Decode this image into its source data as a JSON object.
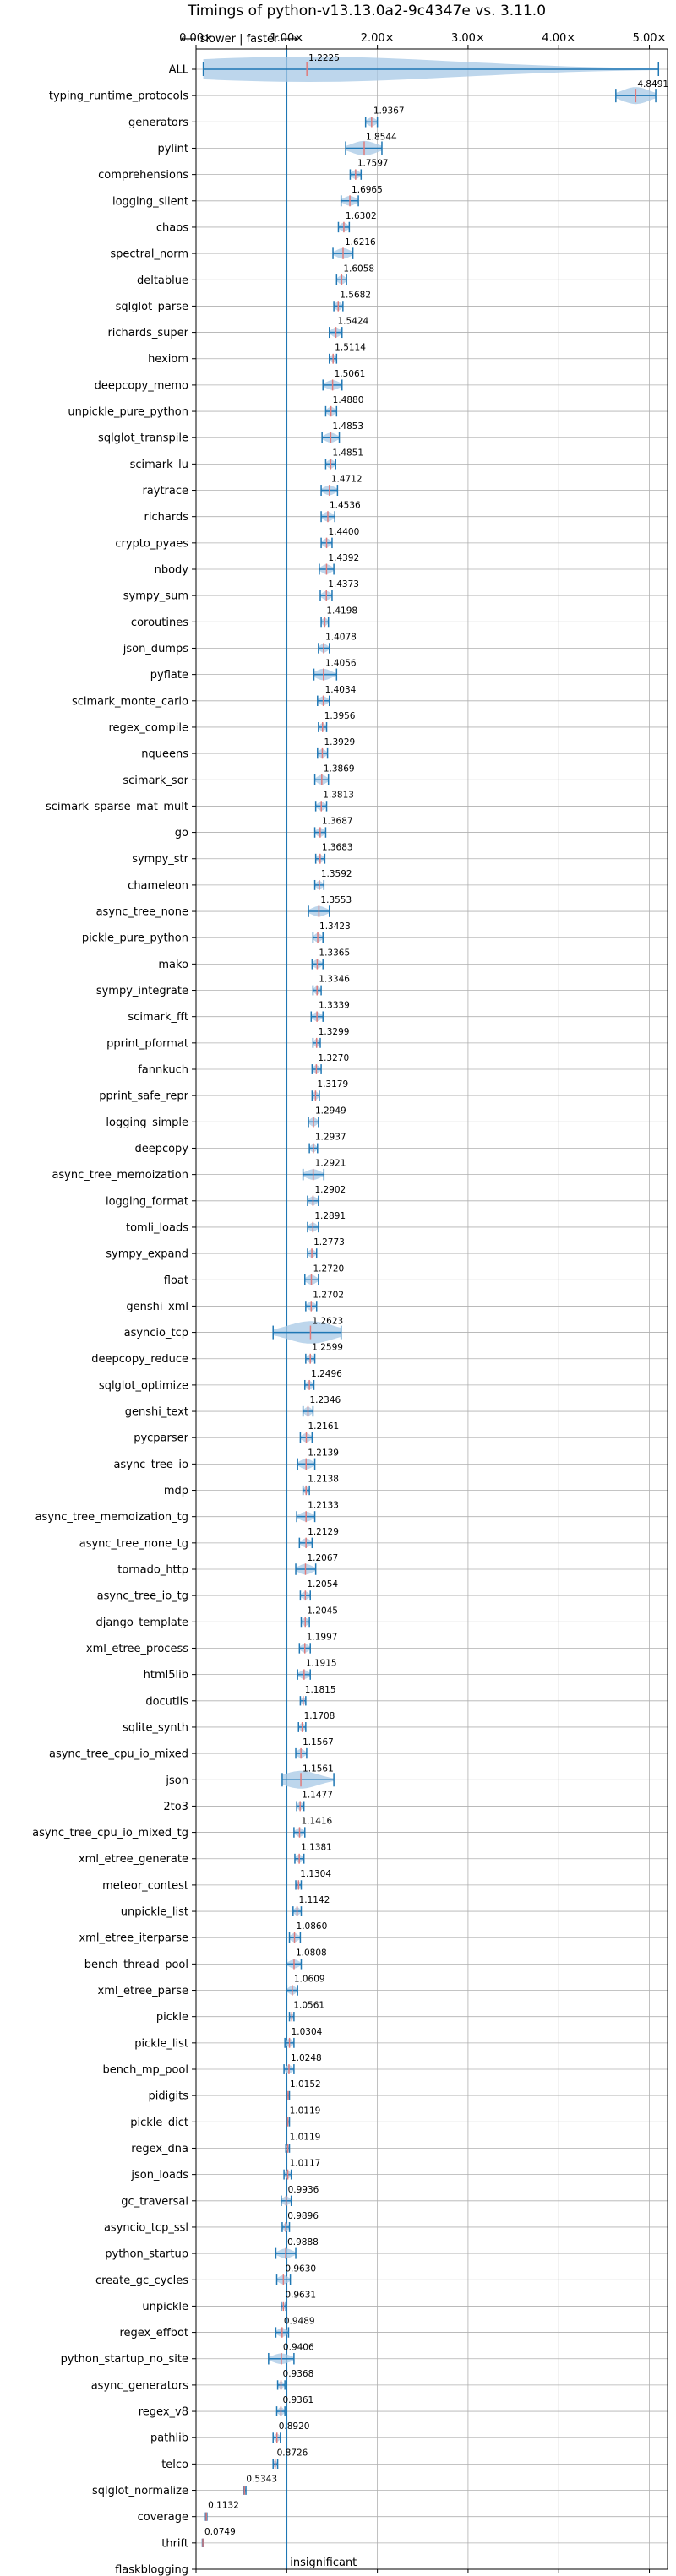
{
  "chart_data": {
    "type": "violin",
    "title": "Timings of python-v13.13.0a2-9c4347e vs. 3.11.0",
    "orientation": "horizontal",
    "xlim": [
      0,
      5.2
    ],
    "xticks": [
      0,
      1,
      2,
      3,
      4,
      5
    ],
    "xtick_labels": [
      "0.00×",
      "1.00×",
      "2.00×",
      "3.00×",
      "4.00×",
      "5.00×"
    ],
    "grid": true,
    "reference_line": 1.0,
    "direction_label": "⟵ slower | faster ⟶",
    "colors": {
      "violin": "#a7c8e6",
      "whisker": "#1f77b4",
      "median": "#e07b7b",
      "grid": "#b0b0b0"
    },
    "benchmarks": [
      {
        "name": "ALL",
        "value": 1.2225,
        "label": "1.2225",
        "lo": 0.08,
        "hi": 5.1,
        "spread": 0.3
      },
      {
        "name": "typing_runtime_protocols",
        "value": 4.8491,
        "label": "4.8491",
        "lo": 4.63,
        "hi": 5.07,
        "spread": 0.15
      },
      {
        "name": "generators",
        "value": 1.9367,
        "label": "1.9367",
        "lo": 1.87,
        "hi": 2.0,
        "spread": 0.05
      },
      {
        "name": "pylint",
        "value": 1.8544,
        "label": "1.8544",
        "lo": 1.65,
        "hi": 2.05,
        "spread": 0.12
      },
      {
        "name": "comprehensions",
        "value": 1.7597,
        "label": "1.7597",
        "lo": 1.7,
        "hi": 1.82,
        "spread": 0.05
      },
      {
        "name": "logging_silent",
        "value": 1.6965,
        "label": "1.6965",
        "lo": 1.6,
        "hi": 1.79,
        "spread": 0.06
      },
      {
        "name": "chaos",
        "value": 1.6302,
        "label": "1.6302",
        "lo": 1.57,
        "hi": 1.69,
        "spread": 0.05
      },
      {
        "name": "spectral_norm",
        "value": 1.6216,
        "label": "1.6216",
        "lo": 1.51,
        "hi": 1.73,
        "spread": 0.07
      },
      {
        "name": "deltablue",
        "value": 1.6058,
        "label": "1.6058",
        "lo": 1.55,
        "hi": 1.66,
        "spread": 0.05
      },
      {
        "name": "sqlglot_parse",
        "value": 1.5682,
        "label": "1.5682",
        "lo": 1.52,
        "hi": 1.62,
        "spread": 0.05
      },
      {
        "name": "richards_super",
        "value": 1.5424,
        "label": "1.5424",
        "lo": 1.47,
        "hi": 1.61,
        "spread": 0.06
      },
      {
        "name": "hexiom",
        "value": 1.5114,
        "label": "1.5114",
        "lo": 1.47,
        "hi": 1.55,
        "spread": 0.04
      },
      {
        "name": "deepcopy_memo",
        "value": 1.5061,
        "label": "1.5061",
        "lo": 1.4,
        "hi": 1.61,
        "spread": 0.06
      },
      {
        "name": "unpickle_pure_python",
        "value": 1.488,
        "label": "1.4880",
        "lo": 1.43,
        "hi": 1.55,
        "spread": 0.05
      },
      {
        "name": "sqlglot_transpile",
        "value": 1.4853,
        "label": "1.4853",
        "lo": 1.39,
        "hi": 1.58,
        "spread": 0.06
      },
      {
        "name": "scimark_lu",
        "value": 1.4851,
        "label": "1.4851",
        "lo": 1.43,
        "hi": 1.54,
        "spread": 0.05
      },
      {
        "name": "raytrace",
        "value": 1.4712,
        "label": "1.4712",
        "lo": 1.38,
        "hi": 1.56,
        "spread": 0.06
      },
      {
        "name": "richards",
        "value": 1.4536,
        "label": "1.4536",
        "lo": 1.38,
        "hi": 1.53,
        "spread": 0.06
      },
      {
        "name": "crypto_pyaes",
        "value": 1.44,
        "label": "1.4400",
        "lo": 1.38,
        "hi": 1.5,
        "spread": 0.05
      },
      {
        "name": "nbody",
        "value": 1.4392,
        "label": "1.4392",
        "lo": 1.36,
        "hi": 1.52,
        "spread": 0.06
      },
      {
        "name": "sympy_sum",
        "value": 1.4373,
        "label": "1.4373",
        "lo": 1.37,
        "hi": 1.5,
        "spread": 0.05
      },
      {
        "name": "coroutines",
        "value": 1.4198,
        "label": "1.4198",
        "lo": 1.38,
        "hi": 1.46,
        "spread": 0.04
      },
      {
        "name": "json_dumps",
        "value": 1.4078,
        "label": "1.4078",
        "lo": 1.35,
        "hi": 1.47,
        "spread": 0.05
      },
      {
        "name": "pyflate",
        "value": 1.4056,
        "label": "1.4056",
        "lo": 1.3,
        "hi": 1.55,
        "spread": 0.08
      },
      {
        "name": "scimark_monte_carlo",
        "value": 1.4034,
        "label": "1.4034",
        "lo": 1.34,
        "hi": 1.47,
        "spread": 0.05
      },
      {
        "name": "regex_compile",
        "value": 1.3956,
        "label": "1.3956",
        "lo": 1.35,
        "hi": 1.44,
        "spread": 0.04
      },
      {
        "name": "nqueens",
        "value": 1.3929,
        "label": "1.3929",
        "lo": 1.34,
        "hi": 1.45,
        "spread": 0.05
      },
      {
        "name": "scimark_sor",
        "value": 1.3869,
        "label": "1.3869",
        "lo": 1.31,
        "hi": 1.46,
        "spread": 0.06
      },
      {
        "name": "scimark_sparse_mat_mult",
        "value": 1.3813,
        "label": "1.3813",
        "lo": 1.32,
        "hi": 1.44,
        "spread": 0.05
      },
      {
        "name": "go",
        "value": 1.3687,
        "label": "1.3687",
        "lo": 1.31,
        "hi": 1.43,
        "spread": 0.05
      },
      {
        "name": "sympy_str",
        "value": 1.3683,
        "label": "1.3683",
        "lo": 1.32,
        "hi": 1.42,
        "spread": 0.04
      },
      {
        "name": "chameleon",
        "value": 1.3592,
        "label": "1.3592",
        "lo": 1.31,
        "hi": 1.41,
        "spread": 0.04
      },
      {
        "name": "async_tree_none",
        "value": 1.3553,
        "label": "1.3553",
        "lo": 1.24,
        "hi": 1.47,
        "spread": 0.07
      },
      {
        "name": "pickle_pure_python",
        "value": 1.3423,
        "label": "1.3423",
        "lo": 1.29,
        "hi": 1.4,
        "spread": 0.05
      },
      {
        "name": "mako",
        "value": 1.3365,
        "label": "1.3365",
        "lo": 1.28,
        "hi": 1.4,
        "spread": 0.05
      },
      {
        "name": "sympy_integrate",
        "value": 1.3346,
        "label": "1.3346",
        "lo": 1.29,
        "hi": 1.38,
        "spread": 0.04
      },
      {
        "name": "scimark_fft",
        "value": 1.3339,
        "label": "1.3339",
        "lo": 1.27,
        "hi": 1.4,
        "spread": 0.05
      },
      {
        "name": "pprint_pformat",
        "value": 1.3299,
        "label": "1.3299",
        "lo": 1.29,
        "hi": 1.37,
        "spread": 0.04
      },
      {
        "name": "fannkuch",
        "value": 1.327,
        "label": "1.3270",
        "lo": 1.28,
        "hi": 1.38,
        "spread": 0.04
      },
      {
        "name": "pprint_safe_repr",
        "value": 1.3179,
        "label": "1.3179",
        "lo": 1.28,
        "hi": 1.36,
        "spread": 0.04
      },
      {
        "name": "logging_simple",
        "value": 1.2949,
        "label": "1.2949",
        "lo": 1.24,
        "hi": 1.35,
        "spread": 0.05
      },
      {
        "name": "deepcopy",
        "value": 1.2937,
        "label": "1.2937",
        "lo": 1.25,
        "hi": 1.34,
        "spread": 0.04
      },
      {
        "name": "async_tree_memoization",
        "value": 1.2921,
        "label": "1.2921",
        "lo": 1.18,
        "hi": 1.41,
        "spread": 0.07
      },
      {
        "name": "logging_format",
        "value": 1.2902,
        "label": "1.2902",
        "lo": 1.23,
        "hi": 1.35,
        "spread": 0.05
      },
      {
        "name": "tomli_loads",
        "value": 1.2891,
        "label": "1.2891",
        "lo": 1.23,
        "hi": 1.35,
        "spread": 0.05
      },
      {
        "name": "sympy_expand",
        "value": 1.2773,
        "label": "1.2773",
        "lo": 1.23,
        "hi": 1.33,
        "spread": 0.04
      },
      {
        "name": "float",
        "value": 1.272,
        "label": "1.2720",
        "lo": 1.2,
        "hi": 1.35,
        "spread": 0.06
      },
      {
        "name": "genshi_xml",
        "value": 1.2702,
        "label": "1.2702",
        "lo": 1.21,
        "hi": 1.33,
        "spread": 0.05
      },
      {
        "name": "asyncio_tcp",
        "value": 1.2623,
        "label": "1.2623",
        "lo": 0.85,
        "hi": 1.6,
        "spread": 0.22
      },
      {
        "name": "deepcopy_reduce",
        "value": 1.2599,
        "label": "1.2599",
        "lo": 1.21,
        "hi": 1.31,
        "spread": 0.04
      },
      {
        "name": "sqlglot_optimize",
        "value": 1.2496,
        "label": "1.2496",
        "lo": 1.2,
        "hi": 1.3,
        "spread": 0.04
      },
      {
        "name": "genshi_text",
        "value": 1.2346,
        "label": "1.2346",
        "lo": 1.18,
        "hi": 1.29,
        "spread": 0.05
      },
      {
        "name": "pycparser",
        "value": 1.2161,
        "label": "1.2161",
        "lo": 1.15,
        "hi": 1.28,
        "spread": 0.05
      },
      {
        "name": "async_tree_io",
        "value": 1.2139,
        "label": "1.2139",
        "lo": 1.12,
        "hi": 1.31,
        "spread": 0.07
      },
      {
        "name": "mdp",
        "value": 1.2138,
        "label": "1.2138",
        "lo": 1.18,
        "hi": 1.25,
        "spread": 0.03
      },
      {
        "name": "async_tree_memoization_tg",
        "value": 1.2133,
        "label": "1.2133",
        "lo": 1.11,
        "hi": 1.31,
        "spread": 0.06
      },
      {
        "name": "async_tree_none_tg",
        "value": 1.2129,
        "label": "1.2129",
        "lo": 1.14,
        "hi": 1.28,
        "spread": 0.05
      },
      {
        "name": "tornado_http",
        "value": 1.2067,
        "label": "1.2067",
        "lo": 1.1,
        "hi": 1.32,
        "spread": 0.07
      },
      {
        "name": "async_tree_io_tg",
        "value": 1.2054,
        "label": "1.2054",
        "lo": 1.15,
        "hi": 1.26,
        "spread": 0.04
      },
      {
        "name": "django_template",
        "value": 1.2045,
        "label": "1.2045",
        "lo": 1.16,
        "hi": 1.25,
        "spread": 0.04
      },
      {
        "name": "xml_etree_process",
        "value": 1.1997,
        "label": "1.1997",
        "lo": 1.14,
        "hi": 1.26,
        "spread": 0.05
      },
      {
        "name": "html5lib",
        "value": 1.1915,
        "label": "1.1915",
        "lo": 1.12,
        "hi": 1.26,
        "spread": 0.05
      },
      {
        "name": "docutils",
        "value": 1.1815,
        "label": "1.1815",
        "lo": 1.15,
        "hi": 1.21,
        "spread": 0.03
      },
      {
        "name": "sqlite_synth",
        "value": 1.1708,
        "label": "1.1708",
        "lo": 1.13,
        "hi": 1.21,
        "spread": 0.04
      },
      {
        "name": "async_tree_cpu_io_mixed",
        "value": 1.1567,
        "label": "1.1567",
        "lo": 1.1,
        "hi": 1.22,
        "spread": 0.05
      },
      {
        "name": "json",
        "value": 1.1561,
        "label": "1.1561",
        "lo": 0.95,
        "hi": 1.52,
        "spread": 0.16
      },
      {
        "name": "2to3",
        "value": 1.1477,
        "label": "1.1477",
        "lo": 1.11,
        "hi": 1.19,
        "spread": 0.04
      },
      {
        "name": "async_tree_cpu_io_mixed_tg",
        "value": 1.1416,
        "label": "1.1416",
        "lo": 1.08,
        "hi": 1.2,
        "spread": 0.05
      },
      {
        "name": "xml_etree_generate",
        "value": 1.1381,
        "label": "1.1381",
        "lo": 1.09,
        "hi": 1.19,
        "spread": 0.04
      },
      {
        "name": "meteor_contest",
        "value": 1.1304,
        "label": "1.1304",
        "lo": 1.1,
        "hi": 1.16,
        "spread": 0.03
      },
      {
        "name": "unpickle_list",
        "value": 1.1142,
        "label": "1.1142",
        "lo": 1.07,
        "hi": 1.16,
        "spread": 0.04
      },
      {
        "name": "xml_etree_iterparse",
        "value": 1.086,
        "label": "1.0860",
        "lo": 1.03,
        "hi": 1.15,
        "spread": 0.05
      },
      {
        "name": "bench_thread_pool",
        "value": 1.0808,
        "label": "1.0808",
        "lo": 1.0,
        "hi": 1.16,
        "spread": 0.05
      },
      {
        "name": "xml_etree_parse",
        "value": 1.0609,
        "label": "1.0609",
        "lo": 1.0,
        "hi": 1.12,
        "spread": 0.05
      },
      {
        "name": "pickle",
        "value": 1.0561,
        "label": "1.0561",
        "lo": 1.03,
        "hi": 1.08,
        "spread": 0.03
      },
      {
        "name": "pickle_list",
        "value": 1.0304,
        "label": "1.0304",
        "lo": 0.98,
        "hi": 1.08,
        "spread": 0.04
      },
      {
        "name": "bench_mp_pool",
        "value": 1.0248,
        "label": "1.0248",
        "lo": 0.97,
        "hi": 1.08,
        "spread": 0.04
      },
      {
        "name": "pidigits",
        "value": 1.0152,
        "label": "1.0152",
        "lo": 1.0,
        "hi": 1.03,
        "spread": 0.02
      },
      {
        "name": "pickle_dict",
        "value": 1.0119,
        "label": "1.0119",
        "lo": 1.0,
        "hi": 1.03,
        "spread": 0.02
      },
      {
        "name": "regex_dna",
        "value": 1.0119,
        "label": "1.0119",
        "lo": 0.99,
        "hi": 1.03,
        "spread": 0.02
      },
      {
        "name": "json_loads",
        "value": 1.0117,
        "label": "1.0117",
        "lo": 0.97,
        "hi": 1.05,
        "spread": 0.04
      },
      {
        "name": "gc_traversal",
        "value": 0.9936,
        "label": "0.9936",
        "lo": 0.94,
        "hi": 1.05,
        "spread": 0.05
      },
      {
        "name": "asyncio_tcp_ssl",
        "value": 0.9896,
        "label": "0.9896",
        "lo": 0.95,
        "hi": 1.03,
        "spread": 0.04
      },
      {
        "name": "python_startup",
        "value": 0.9888,
        "label": "0.9888",
        "lo": 0.88,
        "hi": 1.1,
        "spread": 0.06
      },
      {
        "name": "create_gc_cycles",
        "value": 0.963,
        "label": "0.9630",
        "lo": 0.89,
        "hi": 1.04,
        "spread": 0.05
      },
      {
        "name": "unpickle",
        "value": 0.9631,
        "label": "0.9631",
        "lo": 0.94,
        "hi": 0.99,
        "spread": 0.03
      },
      {
        "name": "regex_effbot",
        "value": 0.9489,
        "label": "0.9489",
        "lo": 0.88,
        "hi": 1.02,
        "spread": 0.05
      },
      {
        "name": "python_startup_no_site",
        "value": 0.9406,
        "label": "0.9406",
        "lo": 0.8,
        "hi": 1.08,
        "spread": 0.07
      },
      {
        "name": "async_generators",
        "value": 0.9368,
        "label": "0.9368",
        "lo": 0.9,
        "hi": 0.98,
        "spread": 0.03
      },
      {
        "name": "regex_v8",
        "value": 0.9361,
        "label": "0.9361",
        "lo": 0.89,
        "hi": 0.98,
        "spread": 0.04
      },
      {
        "name": "pathlib",
        "value": 0.892,
        "label": "0.8920",
        "lo": 0.85,
        "hi": 0.93,
        "spread": 0.04
      },
      {
        "name": "telco",
        "value": 0.8726,
        "label": "0.8726",
        "lo": 0.85,
        "hi": 0.9,
        "spread": 0.03
      },
      {
        "name": "sqlglot_normalize",
        "value": 0.5343,
        "label": "0.5343",
        "lo": 0.52,
        "hi": 0.55,
        "spread": 0.02
      },
      {
        "name": "coverage",
        "value": 0.1132,
        "label": "0.1132",
        "lo": 0.105,
        "hi": 0.12,
        "spread": 0.01
      },
      {
        "name": "thrift",
        "value": 0.0749,
        "label": "0.0749",
        "lo": 0.07,
        "hi": 0.08,
        "spread": 0.01
      },
      {
        "name": "flaskblogging",
        "value": null,
        "label": "insignificant",
        "lo": null,
        "hi": null,
        "spread": 0
      }
    ]
  }
}
